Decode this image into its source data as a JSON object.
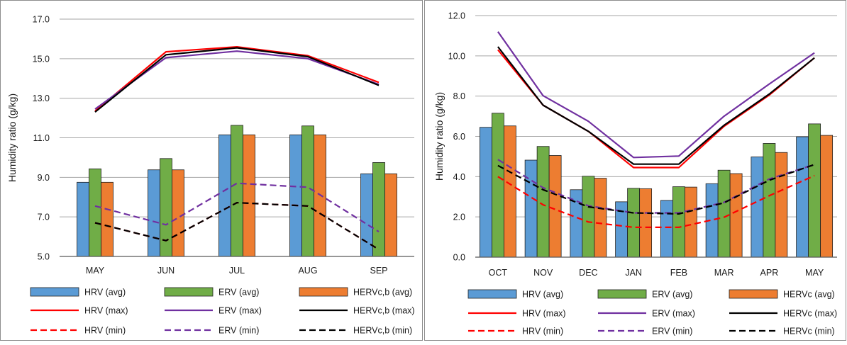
{
  "chart_data": [
    {
      "type": "bar",
      "ylabel": "Humidity ratio (g/kg)",
      "xlabel": "",
      "ylim": [
        5.0,
        17.0
      ],
      "yticks": [
        "5.0",
        "7.0",
        "9.0",
        "11.0",
        "13.0",
        "15.0",
        "17.0"
      ],
      "grid": true,
      "legend_placement": "bottom",
      "categories": [
        "MAY",
        "JUN",
        "JUL",
        "AUG",
        "SEP"
      ],
      "series": [
        {
          "name": "HRV (avg)",
          "kind": "bar",
          "color": "#5b9bd5",
          "values": [
            8.75,
            9.38,
            11.15,
            11.15,
            9.18
          ]
        },
        {
          "name": "ERV (avg)",
          "kind": "bar",
          "color": "#70ad47",
          "values": [
            9.43,
            9.95,
            11.63,
            11.6,
            9.75
          ]
        },
        {
          "name": "HERVc,b (avg)",
          "kind": "bar",
          "color": "#ed7d31",
          "values": [
            8.75,
            9.38,
            11.15,
            11.15,
            9.18
          ]
        },
        {
          "name": "HRV (max)",
          "kind": "line",
          "dash": "solid",
          "color": "#ff0000",
          "values": [
            12.35,
            15.35,
            15.6,
            15.15,
            13.8
          ]
        },
        {
          "name": "ERV (max)",
          "kind": "line",
          "dash": "solid",
          "color": "#7030a0",
          "values": [
            12.45,
            15.05,
            15.38,
            15.0,
            13.7
          ]
        },
        {
          "name": "HERVc,b (max)",
          "kind": "line",
          "dash": "solid",
          "color": "#000000",
          "values": [
            12.3,
            15.2,
            15.55,
            15.1,
            13.65
          ]
        },
        {
          "name": "HRV (min)",
          "kind": "line",
          "dash": "dashed",
          "color": "#ff0000",
          "values": [
            6.7,
            5.8,
            7.72,
            7.55,
            5.35
          ]
        },
        {
          "name": "ERV (min)",
          "kind": "line",
          "dash": "dashed",
          "color": "#7030a0",
          "values": [
            7.55,
            6.6,
            8.7,
            8.5,
            6.25
          ]
        },
        {
          "name": "HERVc,b (min)",
          "kind": "line",
          "dash": "dashed",
          "color": "#000000",
          "values": [
            6.7,
            5.8,
            7.72,
            7.55,
            5.35
          ]
        }
      ]
    },
    {
      "type": "bar",
      "ylabel": "Humidity ratio (g/kg)",
      "xlabel": "",
      "ylim": [
        0.0,
        12.0
      ],
      "yticks": [
        "0.0",
        "2.0",
        "4.0",
        "6.0",
        "8.0",
        "10.0",
        "12.0"
      ],
      "grid": true,
      "legend_placement": "bottom",
      "categories": [
        "OCT",
        "NOV",
        "DEC",
        "JAN",
        "FEB",
        "MAR",
        "APR",
        "MAY"
      ],
      "series": [
        {
          "name": "HRV (avg)",
          "kind": "bar",
          "color": "#5b9bd5",
          "values": [
            6.45,
            4.82,
            3.35,
            2.75,
            2.82,
            3.65,
            4.98,
            5.98
          ]
        },
        {
          "name": "ERV (avg)",
          "kind": "bar",
          "color": "#70ad47",
          "values": [
            7.15,
            5.5,
            4.02,
            3.42,
            3.5,
            4.32,
            5.65,
            6.62
          ]
        },
        {
          "name": "HERVc (avg)",
          "kind": "bar",
          "color": "#ed7d31",
          "values": [
            6.52,
            5.05,
            3.92,
            3.4,
            3.48,
            4.15,
            5.2,
            6.05
          ]
        },
        {
          "name": "HRV (max)",
          "kind": "line",
          "dash": "solid",
          "color": "#ff0000",
          "values": [
            10.3,
            7.55,
            6.25,
            4.45,
            4.45,
            6.5,
            8.05,
            9.9
          ]
        },
        {
          "name": "ERV (max)",
          "kind": "line",
          "dash": "solid",
          "color": "#7030a0",
          "values": [
            11.2,
            8.02,
            6.75,
            4.95,
            5.02,
            7.0,
            8.6,
            10.15
          ]
        },
        {
          "name": "HERVc (max)",
          "kind": "line",
          "dash": "solid",
          "color": "#000000",
          "values": [
            10.45,
            7.55,
            6.25,
            4.62,
            4.62,
            6.55,
            8.1,
            9.9
          ]
        },
        {
          "name": "HRV (min)",
          "kind": "line",
          "dash": "dashed",
          "color": "#ff0000",
          "values": [
            4.0,
            2.6,
            1.75,
            1.48,
            1.48,
            1.98,
            3.05,
            4.05
          ]
        },
        {
          "name": "ERV (min)",
          "kind": "line",
          "dash": "dashed",
          "color": "#7030a0",
          "values": [
            4.85,
            3.45,
            2.55,
            2.2,
            2.2,
            2.72,
            3.88,
            4.6
          ]
        },
        {
          "name": "HERVc (min)",
          "kind": "line",
          "dash": "dashed",
          "color": "#000000",
          "values": [
            4.55,
            3.35,
            2.5,
            2.2,
            2.15,
            2.7,
            3.82,
            4.6
          ]
        }
      ]
    }
  ]
}
